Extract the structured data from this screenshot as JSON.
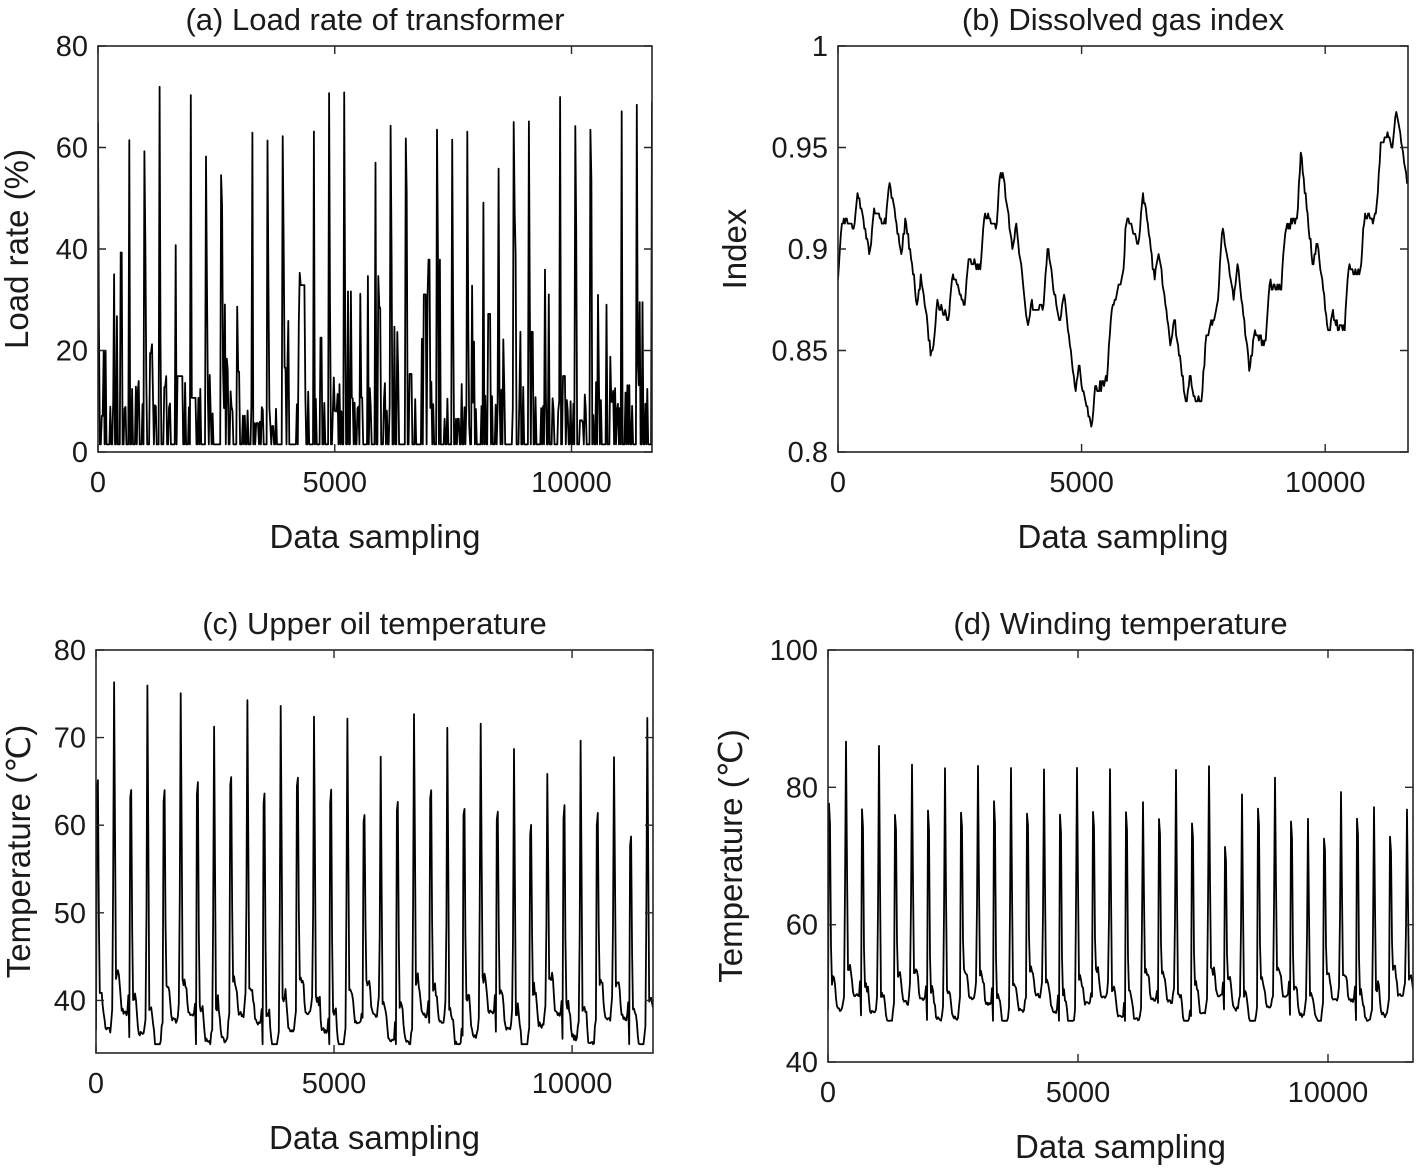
{
  "figure": {
    "background": "#ffffff",
    "line_color": "#000000"
  },
  "chart_data": [
    {
      "type": "line",
      "title": "(a) Load rate of transformer",
      "xlabel": "Data sampling",
      "ylabel": "Load rate (%)",
      "xlim": [
        0,
        11700
      ],
      "ylim": [
        0,
        80
      ],
      "xticks": [
        0,
        5000,
        10000
      ],
      "yticks": [
        0,
        20,
        40,
        60,
        80
      ],
      "xtick_labels": [
        "0",
        "5000",
        "10000"
      ],
      "ytick_labels": [
        "0",
        "20",
        "40",
        "60",
        "80"
      ],
      "series": [
        {
          "name": "Load rate",
          "sampling_step": 20,
          "daily_period": 325,
          "day_peaks": [
            70,
            74,
            69,
            73,
            73,
            72,
            73,
            74,
            67,
            70,
            70,
            71,
            73,
            70,
            71,
            72,
            71,
            75,
            68,
            73,
            73,
            72,
            72,
            72,
            74,
            74,
            73,
            67,
            72,
            73,
            70,
            70,
            72,
            69,
            70,
            70,
            70,
            72,
            70,
            69,
            74,
            70,
            72,
            76,
            73,
            72,
            69,
            72,
            72,
            70,
            72,
            73,
            72,
            72,
            72,
            70,
            72,
            65,
            67,
            65,
            67,
            64,
            69,
            68,
            65,
            70
          ],
          "night_base": 1.5,
          "mid_range": [
            5,
            40
          ]
        }
      ]
    },
    {
      "type": "line",
      "title": "(b) Dissolved gas index",
      "xlabel": "Data sampling",
      "ylabel": "Index",
      "xlim": [
        0,
        11700
      ],
      "ylim": [
        0.8,
        1.0
      ],
      "xticks": [
        0,
        5000,
        10000
      ],
      "yticks": [
        0.8,
        0.85,
        0.9,
        0.95,
        1.0
      ],
      "xtick_labels": [
        "0",
        "5000",
        "10000"
      ],
      "ytick_labels": [
        "0.8",
        "0.85",
        "0.9",
        "0.95",
        "1"
      ],
      "series": [
        {
          "name": "Index",
          "sampling_step": 20,
          "daily_period": 325,
          "trend_x": [
            0,
            300,
            700,
            1000,
            1500,
            1900,
            2300,
            2700,
            3000,
            3400,
            3700,
            4000,
            4300,
            4700,
            5000,
            5300,
            5600,
            5900,
            6300,
            6600,
            7000,
            7300,
            7600,
            7900,
            8200,
            8500,
            8800,
            9200,
            9500,
            9800,
            10200,
            10500,
            11000,
            11300,
            11500,
            11700
          ],
          "trend_y": [
            0.895,
            0.92,
            0.905,
            0.925,
            0.895,
            0.855,
            0.875,
            0.885,
            0.905,
            0.93,
            0.895,
            0.86,
            0.89,
            0.86,
            0.825,
            0.82,
            0.855,
            0.905,
            0.915,
            0.885,
            0.845,
            0.82,
            0.85,
            0.9,
            0.88,
            0.845,
            0.865,
            0.9,
            0.935,
            0.895,
            0.855,
            0.88,
            0.92,
            0.96,
            0.955,
            0.94
          ],
          "daily_amplitude": 0.022
        }
      ]
    },
    {
      "type": "line",
      "title": "(c) Upper oil temperature",
      "xlabel": "Data sampling",
      "ylabel": "Temperature (℃)",
      "xlim": [
        0,
        11700
      ],
      "ylim": [
        34,
        80
      ],
      "xticks": [
        0,
        5000,
        10000
      ],
      "yticks": [
        40,
        50,
        60,
        70,
        80
      ],
      "xtick_labels": [
        "0",
        "5000",
        "10000"
      ],
      "ytick_labels": [
        "40",
        "50",
        "60",
        "70",
        "80"
      ],
      "series": [
        {
          "name": "Upper oil temperature",
          "sampling_step": 20,
          "daily_period": 350,
          "day_peaks": [
            75,
            78,
            74,
            78,
            73,
            77,
            75,
            73,
            75,
            76,
            74,
            75,
            75,
            74,
            74,
            74,
            69,
            69,
            72,
            74,
            73,
            73,
            71,
            73,
            70,
            70,
            68,
            67,
            71,
            71,
            69,
            69,
            67,
            74,
            71,
            72,
            71,
            67,
            66,
            68,
            71,
            73,
            73
          ],
          "base_range": [
            35,
            46
          ]
        }
      ]
    },
    {
      "type": "line",
      "title": "(d) Winding temperature",
      "xlabel": "Data sampling",
      "ylabel": "Temperature (℃)",
      "xlim": [
        0,
        11700
      ],
      "ylim": [
        40,
        100
      ],
      "xticks": [
        0,
        5000,
        10000
      ],
      "yticks": [
        40,
        60,
        80,
        100
      ],
      "xtick_labels": [
        "0",
        "5000",
        "10000"
      ],
      "ytick_labels": [
        "40",
        "60",
        "80",
        "100"
      ],
      "series": [
        {
          "name": "Winding temperature",
          "sampling_step": 20,
          "daily_period": 330,
          "day_peaks": [
            87,
            90,
            86,
            90,
            85,
            86,
            86,
            86,
            85,
            86,
            88,
            86,
            85,
            86,
            86,
            86,
            85,
            86,
            86,
            80,
            84,
            86,
            84,
            86,
            79,
            82,
            86,
            84,
            84,
            78,
            80,
            82,
            85,
            80,
            80,
            79,
            81,
            84,
            84,
            80,
            82,
            84,
            84
          ],
          "base_range": [
            46,
            58
          ]
        }
      ]
    }
  ]
}
